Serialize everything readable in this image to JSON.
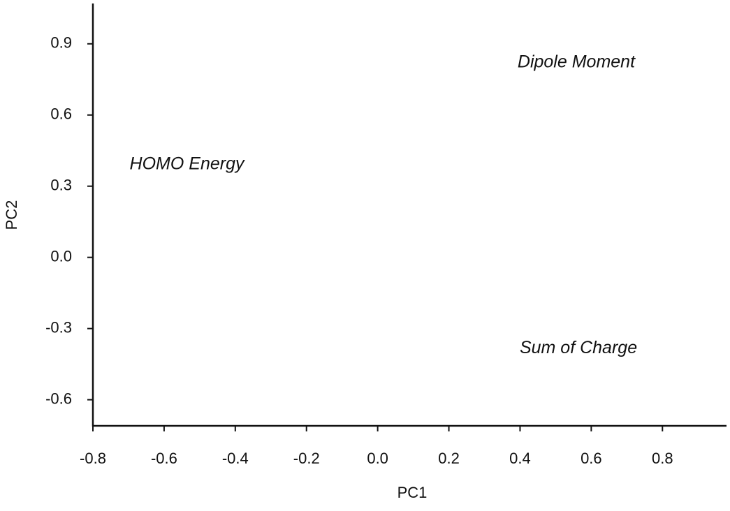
{
  "chart_data": {
    "type": "scatter",
    "xlabel": "PC1",
    "ylabel": "PC2",
    "xlim": [
      -0.8,
      0.98
    ],
    "ylim": [
      -0.71,
      1.07
    ],
    "xticks": [
      -0.8,
      -0.6,
      -0.4,
      -0.2,
      {
        "value": 0,
        "label": "0.0"
      },
      0.2,
      0.4,
      0.6,
      0.8
    ],
    "yticks": [
      -0.6,
      -0.3,
      {
        "value": 0,
        "label": "0.0"
      },
      0.3,
      0.6,
      0.9
    ],
    "annotations": [
      {
        "text": "Dipole Moment",
        "x": 0.558,
        "y": 0.82
      },
      {
        "text": "HOMO Energy",
        "x": -0.536,
        "y": 0.39
      },
      {
        "text": "Sum of Charge",
        "x": 0.564,
        "y": -0.385
      }
    ],
    "color": "#111111"
  }
}
